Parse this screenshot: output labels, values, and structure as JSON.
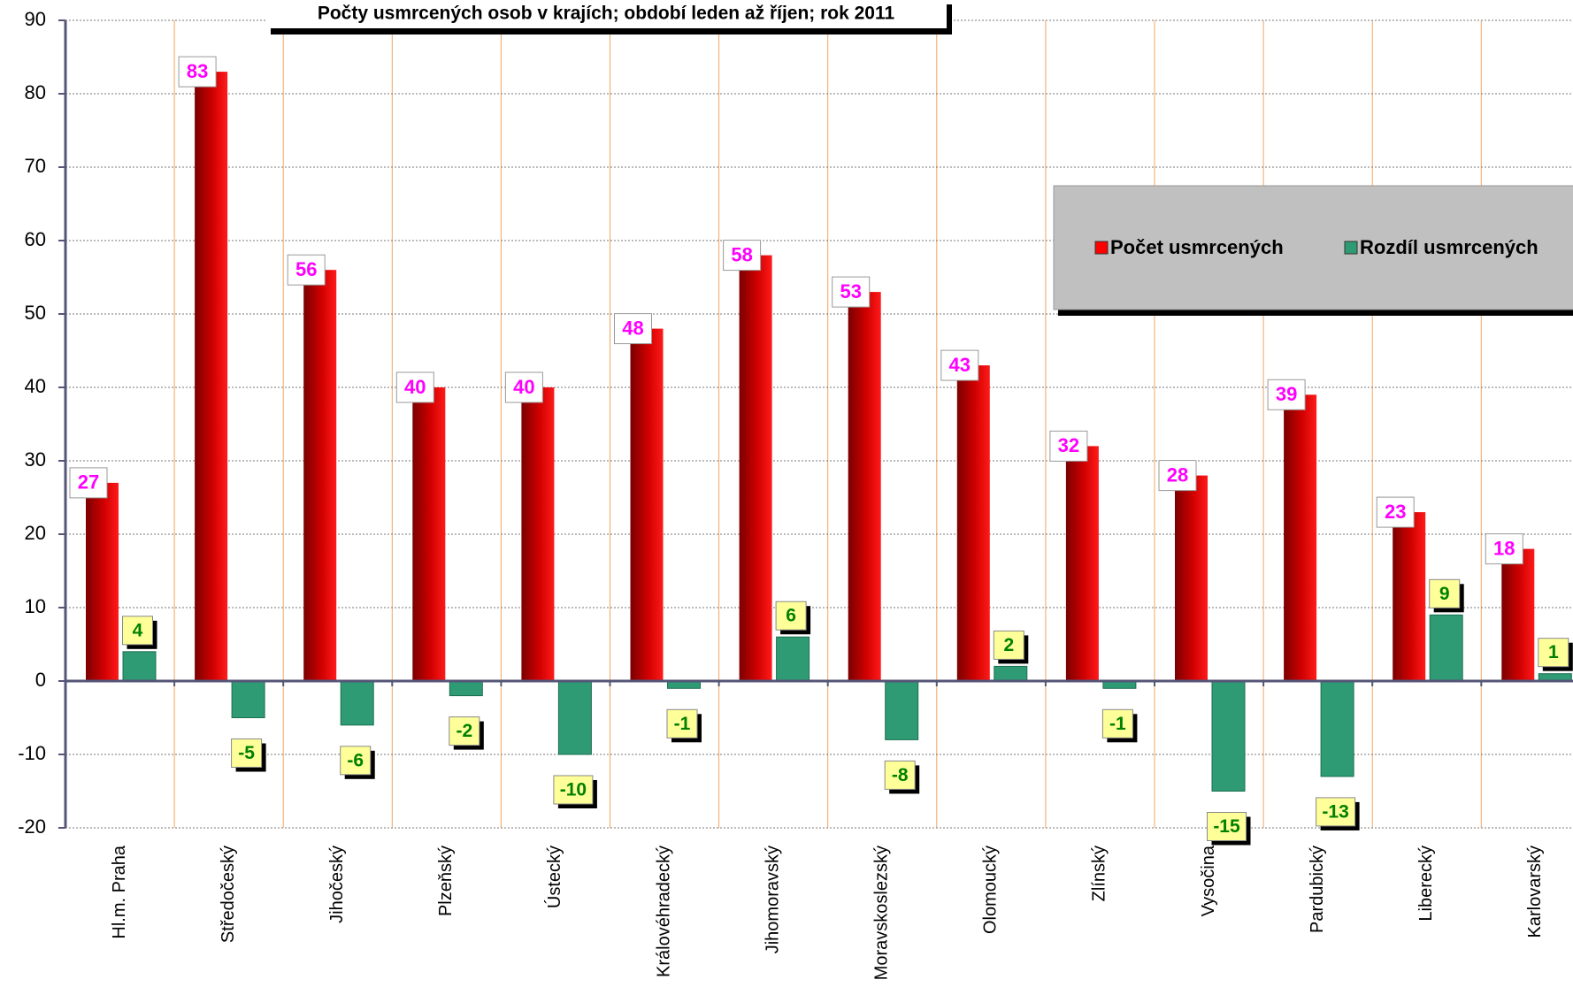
{
  "chart_data": {
    "type": "bar",
    "title": "Počty usmrcených osob v krajích; období leden až říjen; rok  2011",
    "categories": [
      "Hl.m. Praha",
      "Středočeský",
      "Jihočeský",
      "Plzeňský",
      "Ústecký",
      "Královéhradecký",
      "Jihomoravský",
      "Moravskoslezský",
      "Olomoucký",
      "Zlínský",
      "Vysočina",
      "Pardubický",
      "Liberecký",
      "Karlovarský"
    ],
    "series": [
      {
        "name": "Počet usmrcených",
        "color": "#ff0000",
        "values": [
          27,
          83,
          56,
          40,
          40,
          48,
          58,
          53,
          43,
          32,
          28,
          39,
          23,
          18
        ]
      },
      {
        "name": "Rozdíl usmrcených",
        "color": "#2e9b74",
        "values": [
          4,
          -5,
          -6,
          -2,
          -10,
          -1,
          6,
          -8,
          2,
          -1,
          -15,
          -13,
          9,
          1
        ]
      }
    ],
    "ylim": [
      -20,
      90
    ],
    "yticks": [
      -20,
      -10,
      0,
      10,
      20,
      30,
      40,
      50,
      60,
      70,
      80,
      90
    ],
    "grid": true,
    "legend": "right"
  }
}
